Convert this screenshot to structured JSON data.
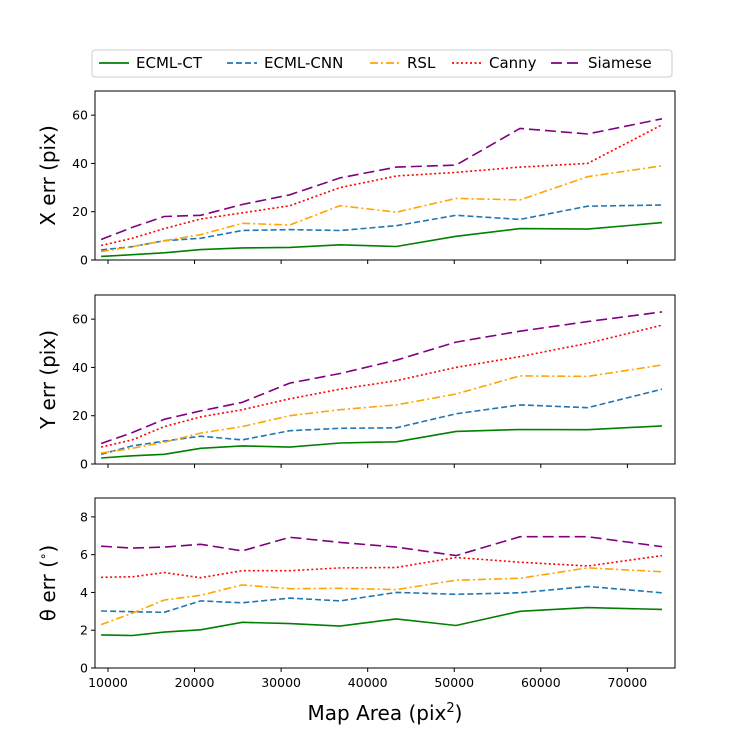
{
  "chart_data": {
    "type": "line",
    "xlabel": "Map Area (pix",
    "xlabel_sup": "2",
    "xlabel_tail": ")",
    "xlim": [
      8500,
      75500
    ],
    "xticks": [
      10000,
      20000,
      30000,
      40000,
      50000,
      60000,
      70000
    ],
    "x": [
      9200,
      12800,
      16500,
      20700,
      25500,
      31000,
      36800,
      43300,
      50200,
      57600,
      65400,
      74000
    ],
    "legend": {
      "placement": "top-center",
      "entries": [
        {
          "name": "ECML-CT",
          "color": "#008000",
          "dash": "solid"
        },
        {
          "name": "ECML-CNN",
          "color": "#1f77b4",
          "dash": "dashed"
        },
        {
          "name": "RSL",
          "color": "#ffa500",
          "dash": "dashdot"
        },
        {
          "name": "Canny",
          "color": "#ff0000",
          "dash": "dotted"
        },
        {
          "name": "Siamese",
          "color": "#800080",
          "dash": "longdash"
        }
      ]
    },
    "panels": [
      {
        "ylabel": "X err (pix)",
        "ylim": [
          0,
          70
        ],
        "yticks": [
          0,
          20,
          40,
          60
        ],
        "series": [
          {
            "name": "ECML-CT",
            "values": [
              1.5,
              2.2,
              3.0,
              4.3,
              5.0,
              5.2,
              6.3,
              5.6,
              9.8,
              13.0,
              12.8,
              15.5
            ]
          },
          {
            "name": "ECML-CNN",
            "values": [
              4.2,
              5.5,
              8.0,
              9.0,
              12.2,
              12.6,
              12.2,
              14.2,
              18.5,
              16.8,
              22.3,
              22.8
            ]
          },
          {
            "name": "RSL",
            "values": [
              3.5,
              5.5,
              8.0,
              10.5,
              15.2,
              14.5,
              22.5,
              19.8,
              25.5,
              24.9,
              34.5,
              39.0
            ]
          },
          {
            "name": "Canny",
            "values": [
              6.0,
              9.0,
              13.0,
              17.0,
              19.5,
              22.5,
              30.0,
              34.8,
              36.3,
              38.5,
              40.0,
              56.0
            ]
          },
          {
            "name": "Siamese",
            "values": [
              8.5,
              13.5,
              18.0,
              18.5,
              23.0,
              27.0,
              34.0,
              38.5,
              39.3,
              54.5,
              52.2,
              58.5
            ]
          }
        ]
      },
      {
        "ylabel": "Y err (pix)",
        "ylim": [
          0,
          70
        ],
        "yticks": [
          0,
          20,
          40,
          60
        ],
        "series": [
          {
            "name": "ECML-CT",
            "values": [
              2.5,
              3.4,
              4.0,
              6.5,
              7.5,
              7.0,
              8.7,
              9.2,
              13.5,
              14.3,
              14.2,
              15.8
            ]
          },
          {
            "name": "ECML-CNN",
            "values": [
              4.0,
              7.5,
              9.5,
              11.5,
              10.0,
              13.8,
              14.8,
              15.0,
              20.8,
              24.5,
              23.3,
              31.0
            ]
          },
          {
            "name": "RSL",
            "values": [
              4.5,
              6.5,
              9.0,
              12.8,
              15.5,
              20.0,
              22.5,
              24.5,
              29.0,
              36.5,
              36.3,
              41.0
            ]
          },
          {
            "name": "Canny",
            "values": [
              7.0,
              10.0,
              15.5,
              19.5,
              22.5,
              27.0,
              31.0,
              34.5,
              40.0,
              44.5,
              50.0,
              57.5
            ]
          },
          {
            "name": "Siamese",
            "values": [
              8.5,
              13.0,
              18.5,
              22.0,
              25.5,
              33.5,
              37.5,
              43.0,
              50.5,
              55.0,
              59.0,
              63.0
            ]
          }
        ]
      },
      {
        "ylabel": "θ err (",
        "ylabel_sup": "∘",
        "ylabel_tail": ")",
        "ylim": [
          0,
          9
        ],
        "yticks": [
          0,
          2,
          4,
          6,
          8
        ],
        "series": [
          {
            "name": "ECML-CT",
            "values": [
              1.75,
              1.72,
              1.9,
              2.02,
              2.42,
              2.35,
              2.22,
              2.6,
              2.25,
              3.0,
              3.2,
              3.1
            ]
          },
          {
            "name": "ECML-CNN",
            "values": [
              3.02,
              2.98,
              2.95,
              3.55,
              3.45,
              3.7,
              3.55,
              4.0,
              3.9,
              3.98,
              4.32,
              3.98
            ]
          },
          {
            "name": "RSL",
            "values": [
              2.3,
              2.9,
              3.6,
              3.85,
              4.4,
              4.2,
              4.22,
              4.15,
              4.65,
              4.75,
              5.3,
              5.1
            ]
          },
          {
            "name": "Canny",
            "values": [
              4.8,
              4.83,
              5.05,
              4.78,
              5.15,
              5.15,
              5.3,
              5.32,
              5.85,
              5.6,
              5.4,
              5.95
            ]
          },
          {
            "name": "Siamese",
            "values": [
              6.45,
              6.35,
              6.4,
              6.55,
              6.2,
              6.92,
              6.65,
              6.4,
              5.95,
              6.95,
              6.95,
              6.42
            ]
          }
        ]
      }
    ]
  }
}
